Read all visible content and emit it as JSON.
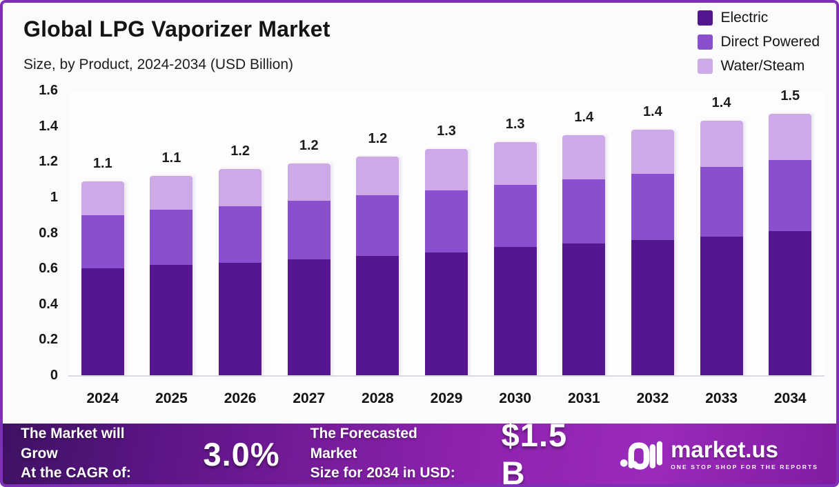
{
  "header": {
    "title": "Global LPG Vaporizer Market",
    "subtitle": "Size, by Product, 2024-2034 (USD Billion)"
  },
  "legend": {
    "position": "top-right",
    "items": [
      {
        "label": "Electric",
        "color": "#551790"
      },
      {
        "label": "Direct Powered",
        "color": "#8a4fce"
      },
      {
        "label": "Water/Steam",
        "color": "#cea9e8"
      }
    ]
  },
  "chart_data": {
    "type": "bar",
    "stacked": true,
    "title": "Global LPG Vaporizer Market",
    "subtitle": "Size, by Product, 2024-2034 (USD Billion)",
    "unit": "USD Billion",
    "grid": false,
    "legend_position": "top-right",
    "categories": [
      "2024",
      "2025",
      "2026",
      "2027",
      "2028",
      "2029",
      "2030",
      "2031",
      "2032",
      "2033",
      "2034"
    ],
    "series": [
      {
        "name": "Electric",
        "color": "#551790",
        "values": [
          0.6,
          0.62,
          0.63,
          0.65,
          0.67,
          0.69,
          0.72,
          0.74,
          0.76,
          0.78,
          0.81
        ]
      },
      {
        "name": "Direct Powered",
        "color": "#8a4fce",
        "values": [
          0.3,
          0.31,
          0.32,
          0.33,
          0.34,
          0.35,
          0.35,
          0.36,
          0.37,
          0.39,
          0.4
        ]
      },
      {
        "name": "Water/Steam",
        "color": "#cea9e8",
        "values": [
          0.19,
          0.19,
          0.21,
          0.21,
          0.22,
          0.23,
          0.24,
          0.25,
          0.25,
          0.26,
          0.26
        ]
      }
    ],
    "total_labels": [
      "1.1",
      "1.1",
      "1.2",
      "1.2",
      "1.2",
      "1.3",
      "1.3",
      "1.4",
      "1.4",
      "1.4",
      "1.5"
    ],
    "y_axis": {
      "min": 0,
      "max": 1.6,
      "ticks": [
        "1.6",
        "1.4",
        "1.2",
        "1",
        "0.8",
        "0.6",
        "0.4",
        "0.2",
        "0"
      ]
    }
  },
  "footer": {
    "cagr_label_line1": "The Market will Grow",
    "cagr_label_line2": "At the CAGR of:",
    "cagr_value": "3.0%",
    "forecast_label_line1": "The Forecasted Market",
    "forecast_label_line2": "Size for 2034 in USD:",
    "forecast_value": "$1.5 B",
    "brand": {
      "name": "market.us",
      "tagline": "ONE STOP SHOP FOR THE REPORTS"
    }
  },
  "colors": {
    "frame_border": "#7e2fb8",
    "banner_gradient_start": "#3e1162",
    "banner_gradient_mid": "#8e22ae",
    "banner_gradient_end": "#801ca0",
    "baseline": "#ddd9df",
    "text": "#141414"
  }
}
